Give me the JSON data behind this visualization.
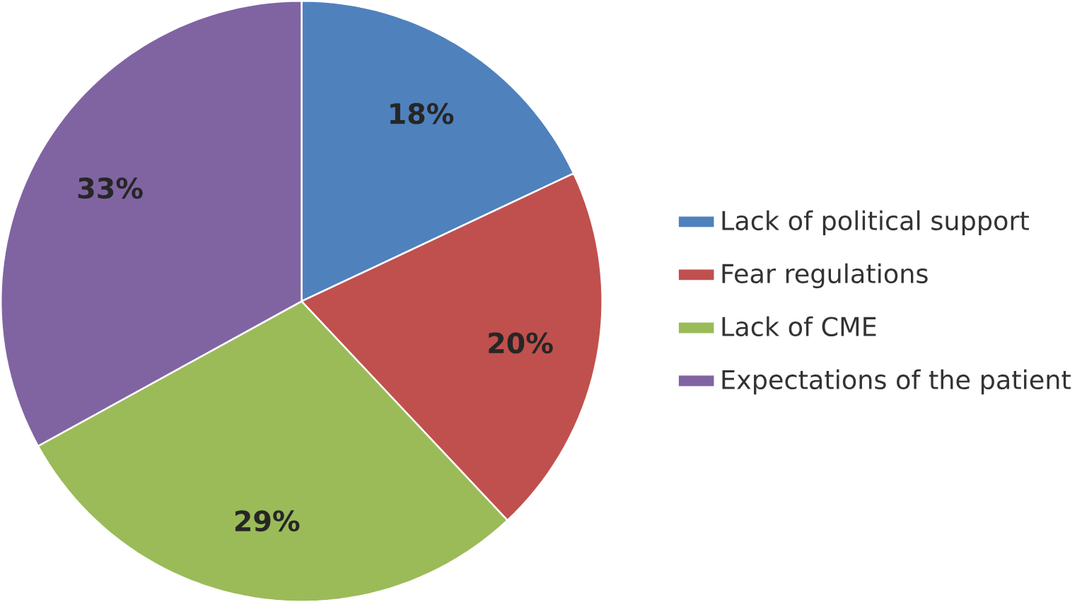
{
  "chart_data": {
    "type": "pie",
    "categories": [
      "Lack of political support",
      "Fear regulations",
      "Lack of CME",
      "Expectations of the patient"
    ],
    "values": [
      18,
      20,
      29,
      33
    ],
    "value_labels": [
      "18%",
      "20%",
      "29%",
      "33%"
    ],
    "colors": [
      "#4f81bd",
      "#c0504d",
      "#9bbb59",
      "#8064a2"
    ],
    "legend": "right"
  }
}
